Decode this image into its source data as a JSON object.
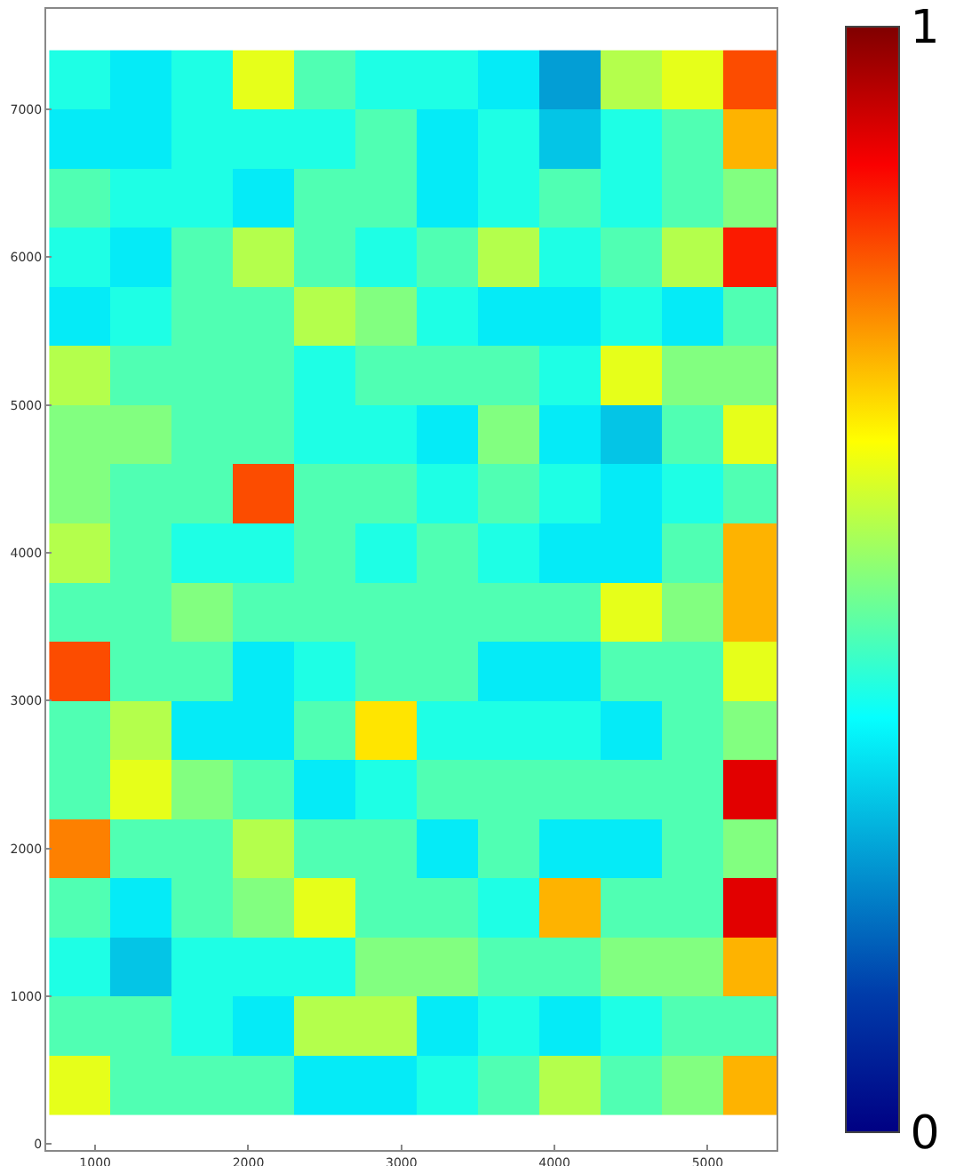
{
  "chart_data": {
    "type": "heatmap",
    "x": [
      900,
      1300,
      1700,
      2100,
      2500,
      2900,
      3300,
      3700,
      4100,
      4500,
      4900,
      5300
    ],
    "y": [
      7200,
      6800,
      6400,
      6000,
      5600,
      5200,
      4800,
      4400,
      4000,
      3600,
      3200,
      2800,
      2400,
      2000,
      1600,
      1200,
      800,
      400
    ],
    "cells": [
      [
        0.4,
        0.35,
        0.4,
        0.6,
        0.45,
        0.4,
        0.4,
        0.35,
        0.25,
        0.55,
        0.6,
        0.8
      ],
      [
        0.35,
        0.35,
        0.4,
        0.4,
        0.4,
        0.45,
        0.35,
        0.4,
        0.3,
        0.4,
        0.45,
        0.7
      ],
      [
        0.45,
        0.4,
        0.4,
        0.35,
        0.45,
        0.45,
        0.35,
        0.4,
        0.45,
        0.4,
        0.45,
        0.5
      ],
      [
        0.4,
        0.35,
        0.45,
        0.55,
        0.45,
        0.4,
        0.45,
        0.55,
        0.4,
        0.45,
        0.55,
        0.85
      ],
      [
        0.35,
        0.4,
        0.45,
        0.45,
        0.55,
        0.5,
        0.4,
        0.35,
        0.35,
        0.4,
        0.35,
        0.45
      ],
      [
        0.55,
        0.45,
        0.45,
        0.45,
        0.4,
        0.45,
        0.45,
        0.45,
        0.4,
        0.6,
        0.5,
        0.5
      ],
      [
        0.5,
        0.5,
        0.45,
        0.45,
        0.4,
        0.4,
        0.35,
        0.5,
        0.35,
        0.3,
        0.45,
        0.6
      ],
      [
        0.5,
        0.45,
        0.45,
        0.8,
        0.45,
        0.45,
        0.4,
        0.45,
        0.4,
        0.35,
        0.4,
        0.45
      ],
      [
        0.55,
        0.45,
        0.4,
        0.4,
        0.45,
        0.4,
        0.45,
        0.4,
        0.35,
        0.35,
        0.45,
        0.7
      ],
      [
        0.45,
        0.45,
        0.5,
        0.45,
        0.45,
        0.45,
        0.45,
        0.45,
        0.45,
        0.6,
        0.5,
        0.7
      ],
      [
        0.8,
        0.45,
        0.45,
        0.35,
        0.4,
        0.45,
        0.45,
        0.35,
        0.35,
        0.45,
        0.45,
        0.6
      ],
      [
        0.45,
        0.55,
        0.35,
        0.35,
        0.45,
        0.65,
        0.4,
        0.4,
        0.4,
        0.35,
        0.45,
        0.5
      ],
      [
        0.45,
        0.6,
        0.5,
        0.45,
        0.35,
        0.4,
        0.45,
        0.45,
        0.45,
        0.45,
        0.45,
        0.9
      ],
      [
        0.75,
        0.45,
        0.45,
        0.55,
        0.45,
        0.45,
        0.35,
        0.45,
        0.35,
        0.35,
        0.45,
        0.5
      ],
      [
        0.45,
        0.35,
        0.45,
        0.5,
        0.6,
        0.45,
        0.45,
        0.4,
        0.7,
        0.45,
        0.45,
        0.9
      ],
      [
        0.4,
        0.3,
        0.4,
        0.4,
        0.4,
        0.5,
        0.5,
        0.45,
        0.45,
        0.5,
        0.5,
        0.7
      ],
      [
        0.45,
        0.45,
        0.4,
        0.35,
        0.55,
        0.55,
        0.35,
        0.4,
        0.35,
        0.4,
        0.45,
        0.45
      ],
      [
        0.6,
        0.45,
        0.45,
        0.45,
        0.35,
        0.35,
        0.4,
        0.45,
        0.55,
        0.45,
        0.5,
        0.7
      ]
    ],
    "xlim": [
      680,
      5450
    ],
    "ylim": [
      -40,
      7680
    ],
    "xticks": [
      1000,
      2000,
      3000,
      4000,
      5000
    ],
    "yticks": [
      0,
      1000,
      2000,
      3000,
      4000,
      5000,
      6000,
      7000
    ],
    "clim": [
      0,
      1
    ],
    "cticks": [
      0,
      1
    ],
    "grid": false
  }
}
